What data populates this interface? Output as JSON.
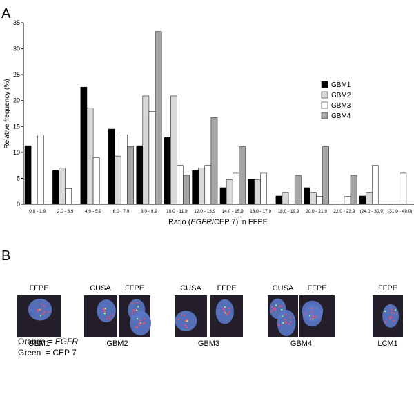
{
  "chart_data": {
    "type": "bar",
    "panel_label": "A",
    "ylabel": "Relative frequency (%)",
    "xlabel_parts": [
      "Ratio (",
      "EGFR",
      "/CEP 7) in FFPE"
    ],
    "categories": [
      "0.0 - 1.9",
      "2.0 - 3.9",
      "4.0 - 5.9",
      "6.0 - 7.9",
      "8.0 - 9.9",
      "10.0 - 11.9",
      "12.0 - 13.9",
      "14.0 - 15.9",
      "16.0 - 17.9",
      "18.0 - 19.9",
      "20.0 - 21.9",
      "22.0 - 23.9",
      "(24.0 - 30.9)",
      "(31.0 - 49.0)"
    ],
    "series": [
      {
        "name": "GBM1",
        "color": "#000000",
        "values": [
          11.3,
          6.5,
          22.6,
          14.5,
          11.3,
          12.9,
          6.5,
          3.2,
          4.8,
          1.6,
          3.2,
          0,
          1.6,
          0
        ]
      },
      {
        "name": "GBM2",
        "color": "#d9d9d9",
        "values": [
          0,
          7.0,
          18.6,
          9.3,
          20.9,
          20.9,
          7.0,
          4.7,
          4.7,
          2.3,
          2.3,
          0,
          2.3,
          0
        ]
      },
      {
        "name": "GBM3",
        "color": "#ffffff",
        "values": [
          13.4,
          3.0,
          9.0,
          13.4,
          17.9,
          7.5,
          7.5,
          6.0,
          6.0,
          0,
          1.5,
          1.5,
          7.5,
          6.0
        ]
      },
      {
        "name": "GBM4",
        "color": "#a6a6a6",
        "values": [
          0,
          0,
          0,
          11.1,
          33.3,
          5.6,
          16.7,
          11.1,
          0,
          5.6,
          11.1,
          5.6,
          0,
          0
        ]
      }
    ],
    "ylim": [
      0,
      35
    ],
    "yticks": [
      0,
      5,
      10,
      15,
      20,
      25,
      30,
      35
    ],
    "legend": "upper-right"
  },
  "panel_b": {
    "panel_label": "B",
    "groups": [
      {
        "captions": [
          "FFPE"
        ],
        "label": "GBM1"
      },
      {
        "captions": [
          "CUSA",
          "FFPE"
        ],
        "label": "GBM2"
      },
      {
        "captions": [
          "CUSA",
          "FFPE"
        ],
        "label": "GBM3"
      },
      {
        "captions": [
          "CUSA",
          "FFPE"
        ],
        "label": "GBM4"
      },
      {
        "captions": [
          "FFPE"
        ],
        "label": "LCM1"
      }
    ],
    "key": [
      [
        "Orange = ",
        "EGFR"
      ],
      [
        "Green  = CEP 7"
      ]
    ]
  }
}
